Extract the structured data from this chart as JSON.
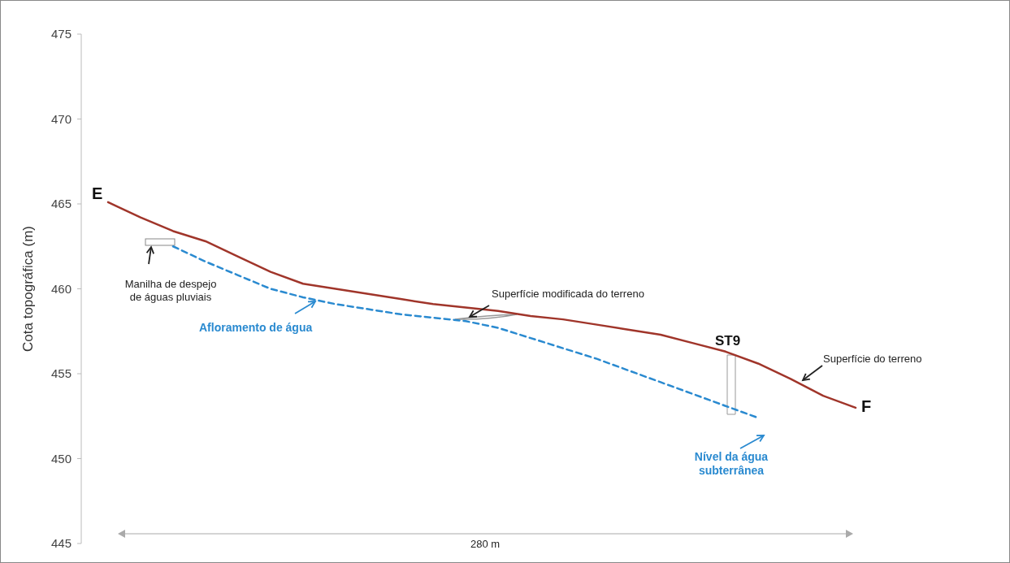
{
  "chart_data": {
    "type": "line",
    "ylabel": "Cota topográfica (m)",
    "ylim": [
      445,
      475
    ],
    "yticks": [
      445,
      450,
      455,
      460,
      465,
      470,
      475
    ],
    "categories": [
      null,
      null,
      null,
      null,
      null,
      null,
      null,
      null,
      null,
      null,
      null,
      null,
      null,
      null,
      null,
      null,
      null,
      null,
      null,
      null,
      null,
      null,
      null,
      null
    ],
    "series": [
      {
        "color": "#2a8ad0",
        "line_style": "dashed",
        "values": [
          null,
          null,
          462.5,
          461.6,
          460.8,
          460.0,
          459.5,
          459.1,
          458.8,
          458.5,
          458.3,
          458.1,
          457.7,
          457.1,
          456.5,
          455.9,
          455.2,
          454.5,
          453.8,
          453.1,
          452.4,
          null,
          null,
          null
        ]
      },
      {
        "color": "#a0352a",
        "line_style": "solid",
        "values": [
          465.1,
          464.2,
          463.4,
          462.8,
          461.9,
          461.0,
          460.3,
          460.0,
          459.7,
          459.4,
          459.1,
          458.9,
          458.7,
          458.4,
          458.2,
          457.9,
          457.6,
          457.3,
          456.8,
          456.3,
          455.6,
          454.7,
          453.7,
          453.0
        ]
      }
    ],
    "annotations": [
      "E",
      "F",
      "ST9",
      "Manilha de despejo\nde águas pluviais",
      "Superfície modificada do terreno",
      "Afloramento de água",
      "280 m",
      "Superfície do terreno",
      "Nível da água\nsubterrânea"
    ]
  }
}
